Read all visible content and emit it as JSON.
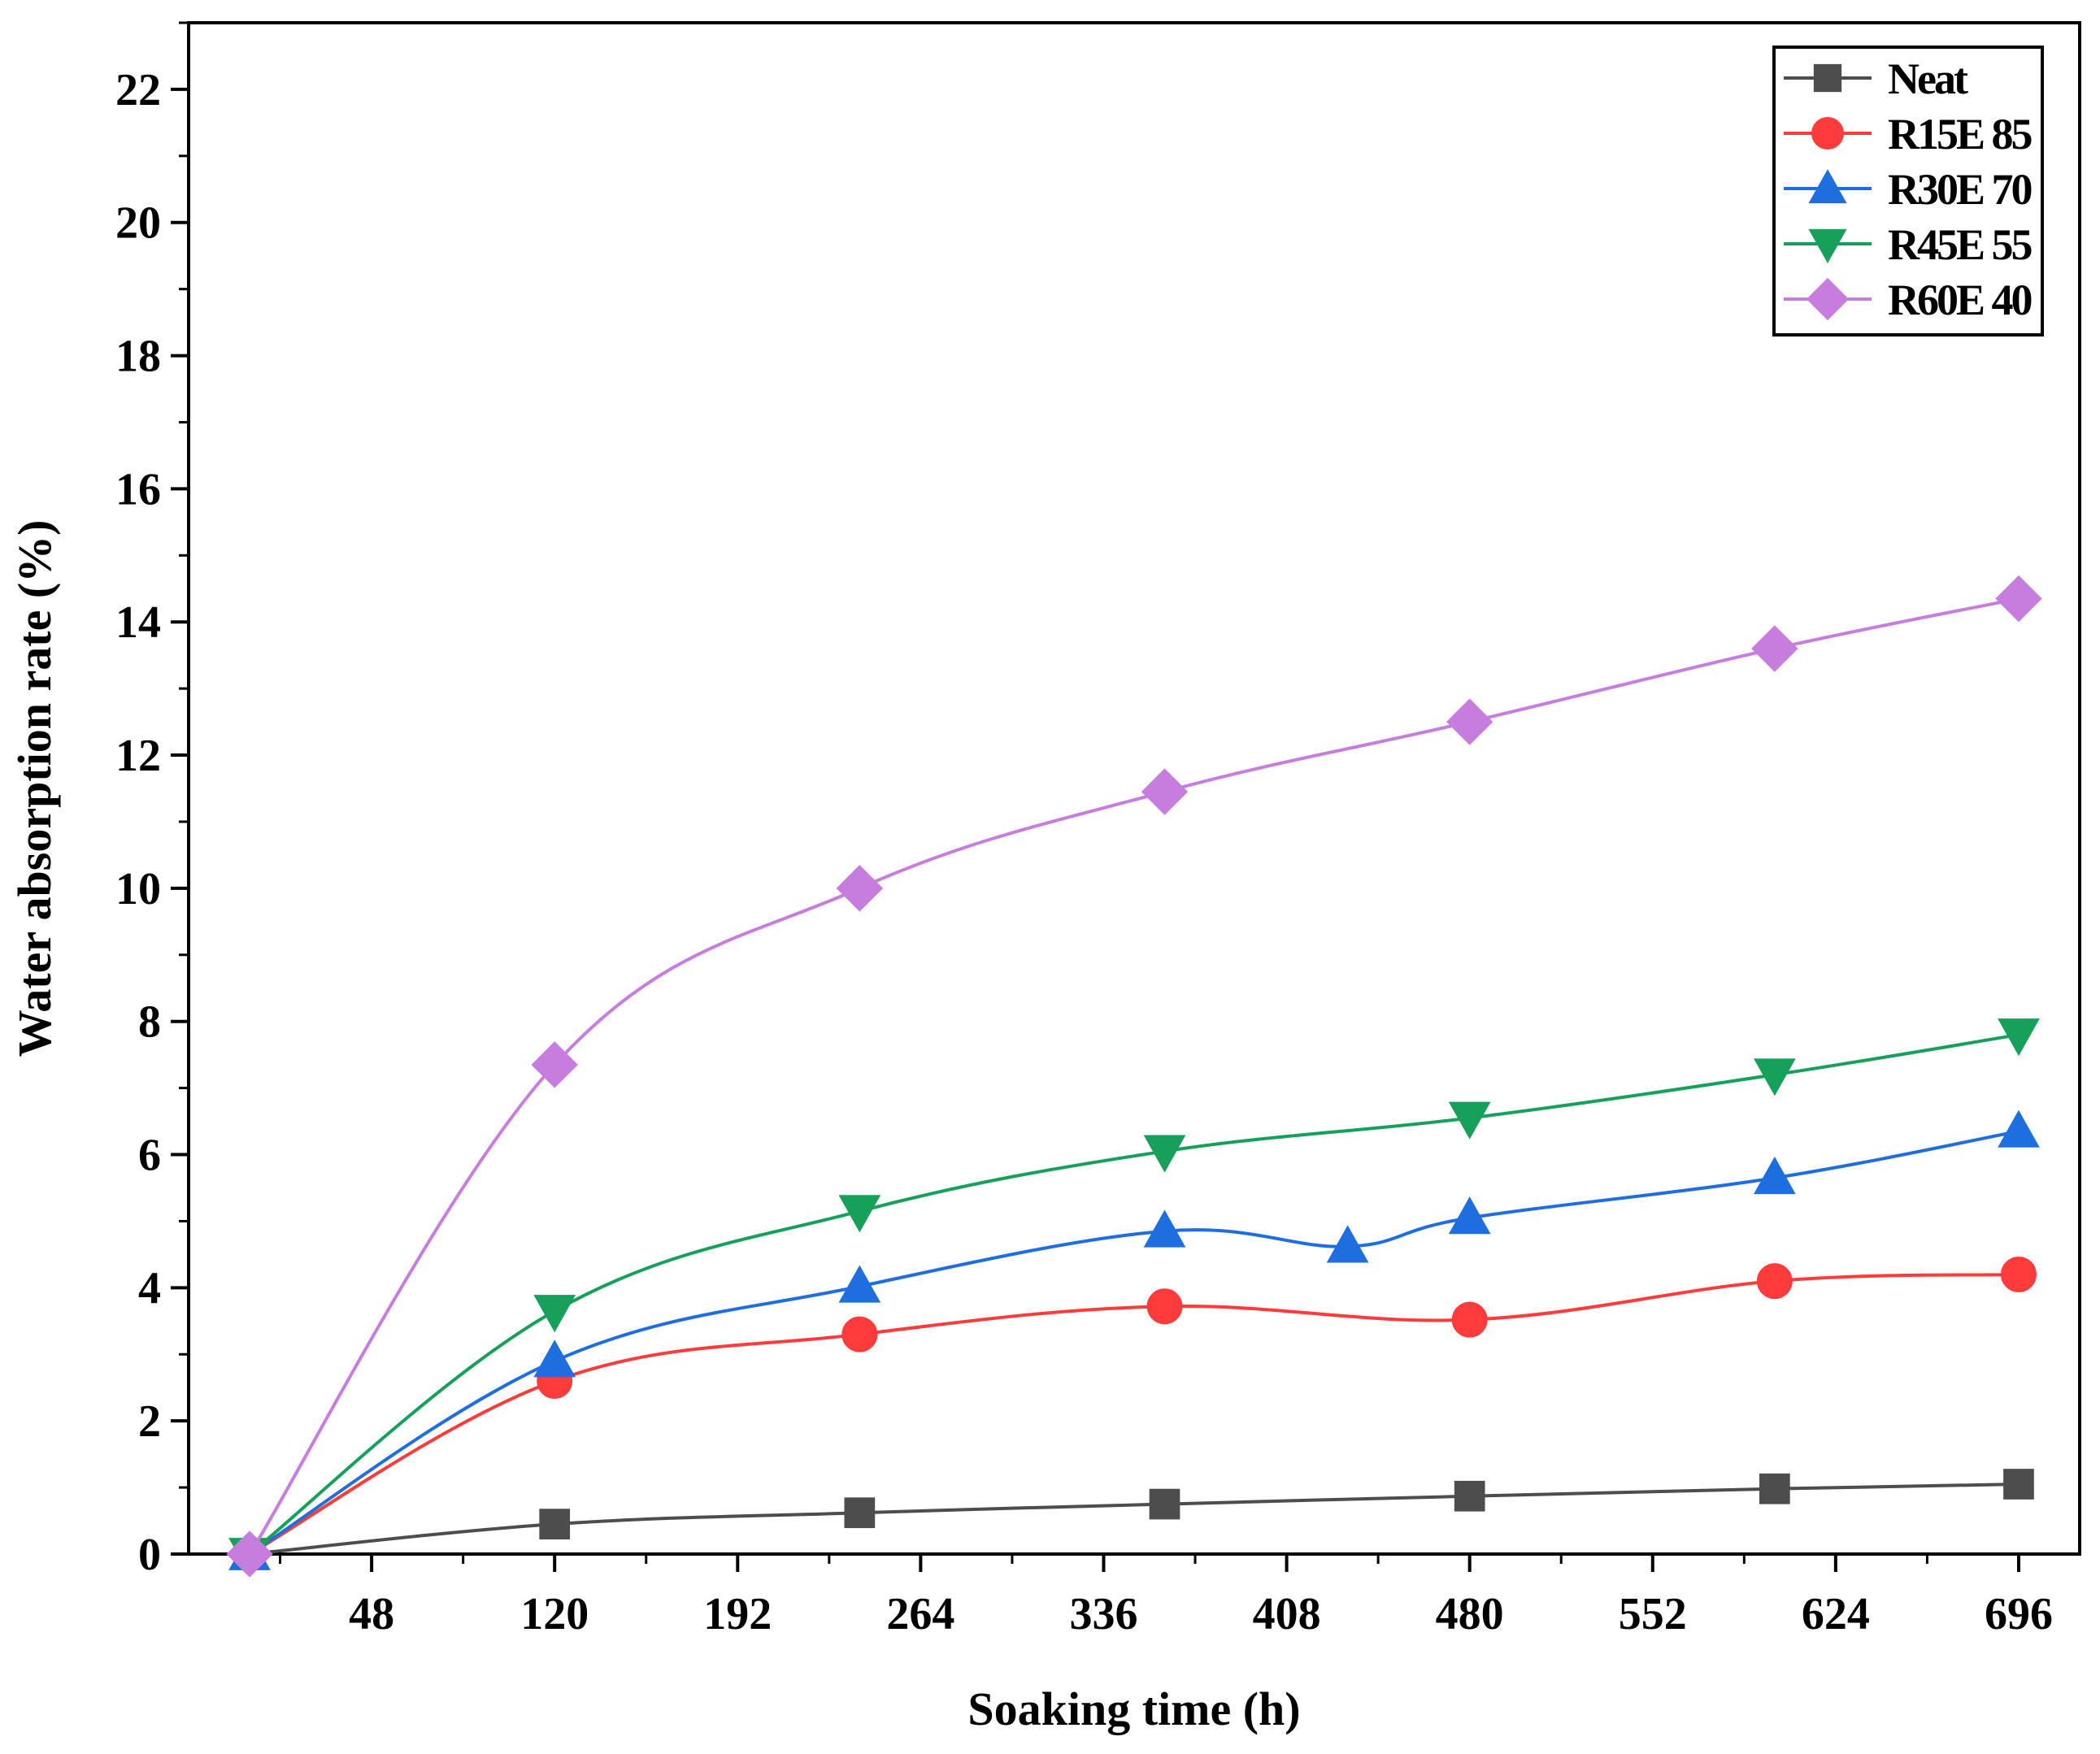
{
  "chart_data": {
    "type": "line",
    "title": "",
    "xlabel": "Soaking time (h)",
    "ylabel": "Water absorption rate (%)",
    "xlim": [
      -24,
      720
    ],
    "ylim": [
      0,
      23
    ],
    "xticks": [
      48,
      120,
      192,
      264,
      336,
      408,
      480,
      552,
      624,
      696
    ],
    "yticks": [
      0,
      2,
      4,
      6,
      8,
      10,
      12,
      14,
      16,
      18,
      20,
      22
    ],
    "legend_position": "top-right",
    "series": [
      {
        "name": "Neat",
        "color": "#4d4d4d",
        "marker": "square",
        "x": [
          0,
          120,
          240,
          360,
          480,
          600,
          696
        ],
        "y": [
          0,
          0.45,
          0.62,
          0.75,
          0.87,
          0.98,
          1.05
        ]
      },
      {
        "name": "R15E 85",
        "color": "#ff3b3b",
        "marker": "circle",
        "x": [
          0,
          120,
          240,
          360,
          480,
          600,
          696
        ],
        "y": [
          0,
          2.6,
          3.3,
          3.72,
          3.52,
          4.1,
          4.2
        ]
      },
      {
        "name": "R30E 70",
        "color": "#1f6ee0",
        "marker": "triangle-up",
        "x": [
          0,
          120,
          240,
          360,
          432,
          480,
          600,
          696
        ],
        "y": [
          0,
          2.9,
          4.02,
          4.85,
          4.62,
          5.05,
          5.65,
          6.35
        ]
      },
      {
        "name": "R45E 55",
        "color": "#16a05a",
        "marker": "triangle-down",
        "x": [
          0,
          120,
          240,
          360,
          480,
          600,
          696
        ],
        "y": [
          0,
          3.65,
          5.15,
          6.05,
          6.55,
          7.2,
          7.8
        ]
      },
      {
        "name": "R60E 40",
        "color": "#c77dde",
        "marker": "diamond",
        "x": [
          0,
          120,
          240,
          360,
          480,
          600,
          696
        ],
        "y": [
          0,
          7.35,
          10.0,
          11.45,
          12.5,
          13.6,
          14.35
        ]
      }
    ]
  }
}
